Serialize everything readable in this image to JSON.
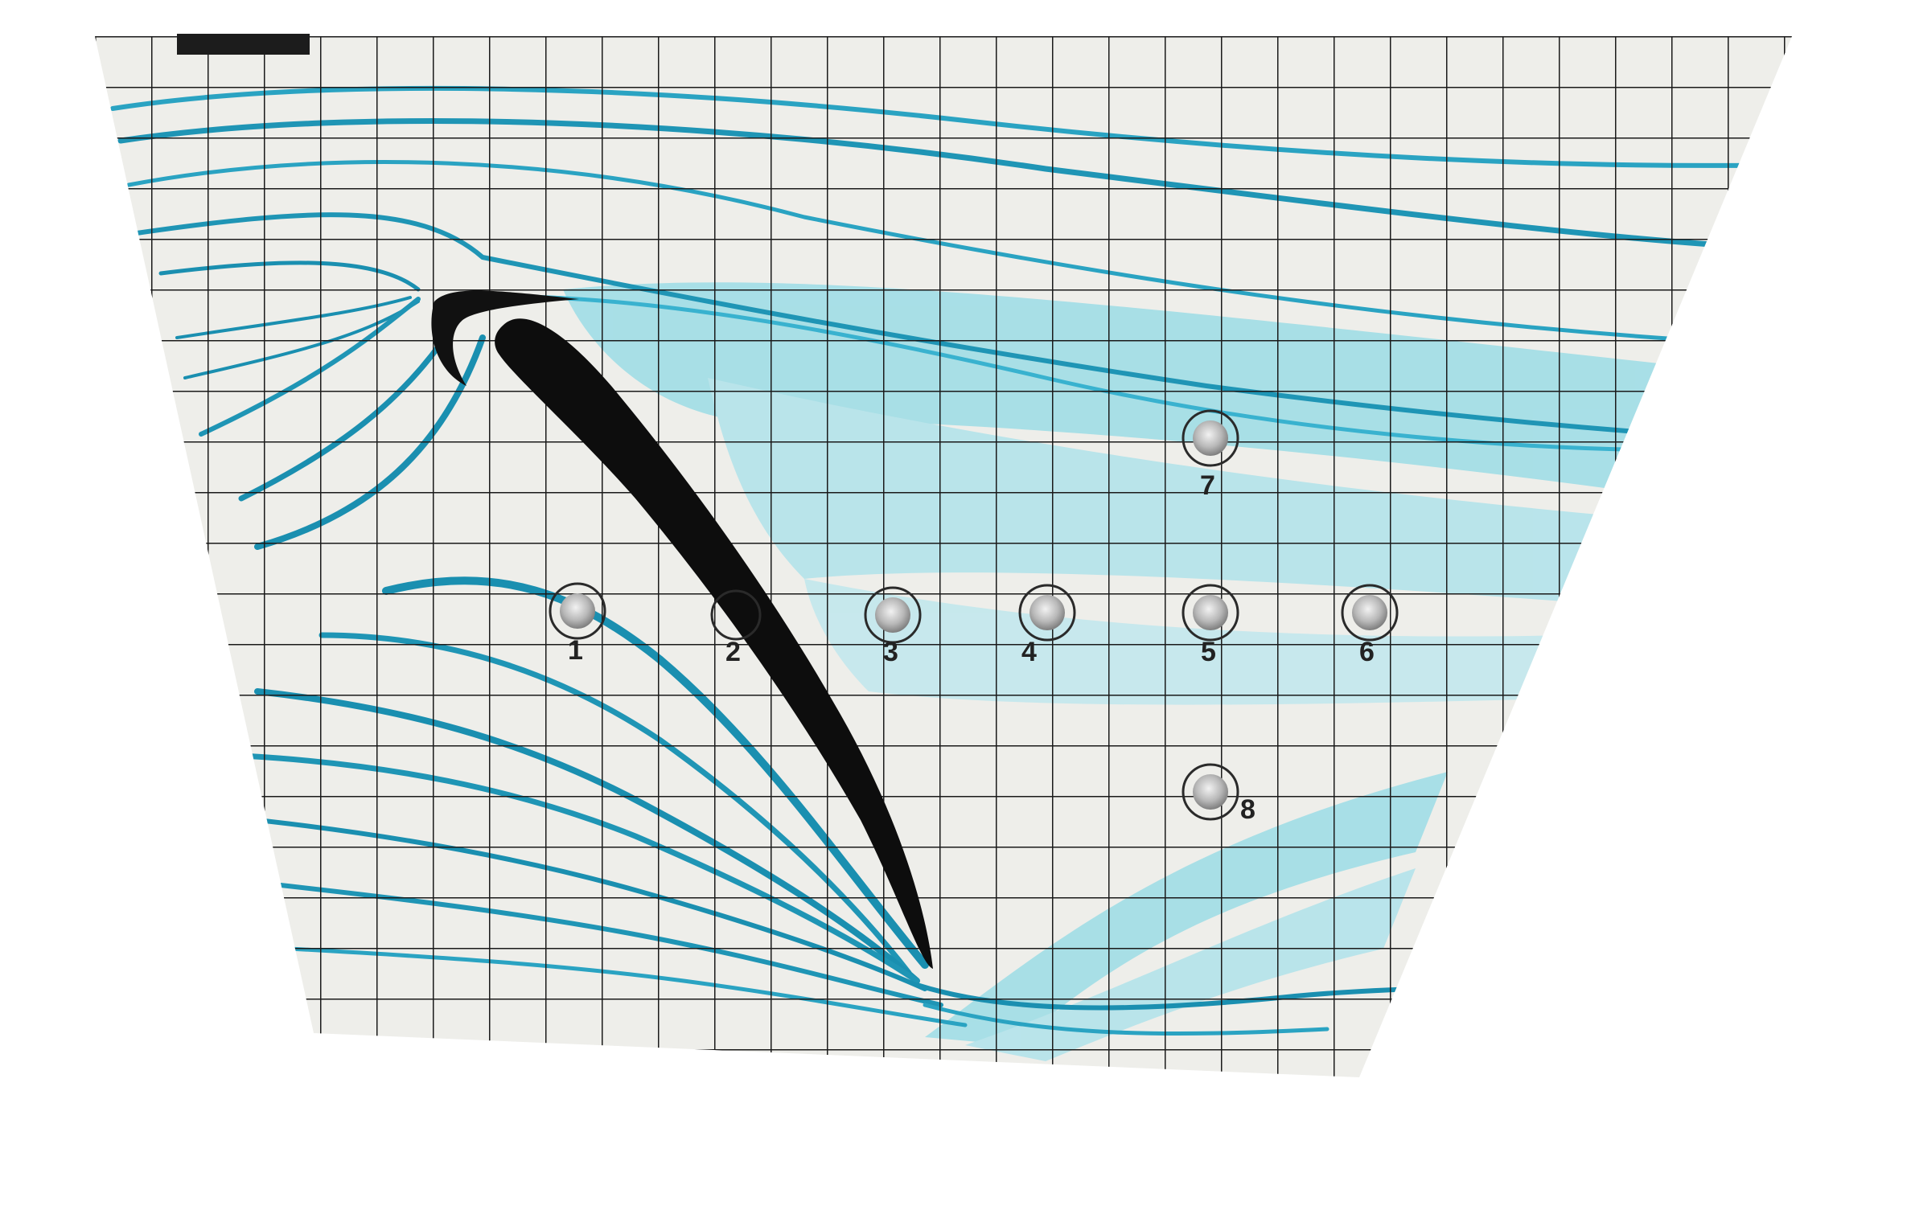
{
  "photo": {
    "colors": {
      "background": "#ffffff",
      "plate": "#eeeeea",
      "grid_line": "#1a1a1a",
      "dye_dark": "#1a8fb0",
      "dye_light": "#5fcde0",
      "airfoil": "#0d0d0d",
      "port_ring": "#2a2a2a",
      "port_fill": "#c9c9c9"
    },
    "pressure_ports": [
      {
        "label": "1"
      },
      {
        "label": "2"
      },
      {
        "label": "3"
      },
      {
        "label": "4"
      },
      {
        "label": "5"
      },
      {
        "label": "6"
      },
      {
        "label": "7"
      },
      {
        "label": "8"
      }
    ]
  }
}
